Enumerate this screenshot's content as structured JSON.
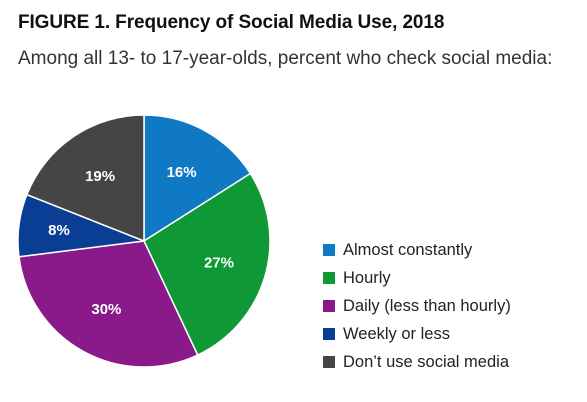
{
  "figure": {
    "title": "FIGURE 1. Frequency of Social Media Use, 2018",
    "subtitle": "Among all 13- to 17-year-olds, percent who check social media:"
  },
  "chart_data": {
    "type": "pie",
    "start": "12 o'clock",
    "direction": "clockwise",
    "legend_position": "right",
    "slices": [
      {
        "label": "Almost constantly",
        "value": 16,
        "value_label": "16%",
        "color": "#0f79c4"
      },
      {
        "label": "Hourly",
        "value": 27,
        "value_label": "27%",
        "color": "#0e9836"
      },
      {
        "label": "Daily (less than hourly)",
        "value": 30,
        "value_label": "30%",
        "color": "#8a1a8a"
      },
      {
        "label": "Weekly or less",
        "value": 8,
        "value_label": "8%",
        "color": "#0a3d94"
      },
      {
        "label": "Don’t use social media",
        "value": 19,
        "value_label": "19%",
        "color": "#454545"
      }
    ]
  }
}
